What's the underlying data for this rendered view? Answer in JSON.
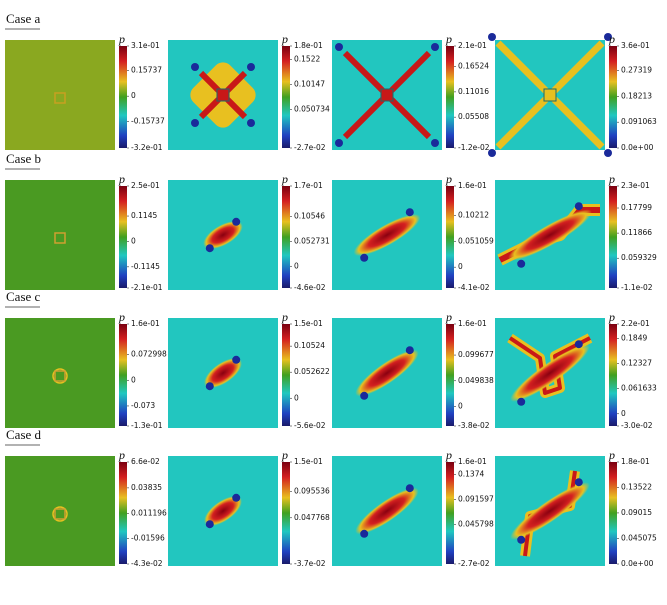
{
  "colorbar_symbol": "p",
  "cases": [
    {
      "label": "Case a",
      "panels": [
        {
          "ticks": [
            "3.1e-01",
            "0.15737",
            "0",
            "-0.15737",
            "-3.2e-01"
          ]
        },
        {
          "ticks": [
            "1.8e-01",
            "0.1522",
            "0.10147",
            "0.050734",
            "-2.7e-02"
          ]
        },
        {
          "ticks": [
            "2.1e-01",
            "0.16524",
            "0.11016",
            "0.05508",
            "-1.2e-02"
          ]
        },
        {
          "ticks": [
            "3.6e-01",
            "0.27319",
            "0.18213",
            "0.091063",
            "0.0e+00"
          ]
        }
      ]
    },
    {
      "label": "Case b",
      "panels": [
        {
          "ticks": [
            "2.5e-01",
            "0.1145",
            "0",
            "-0.1145",
            "-2.1e-01"
          ]
        },
        {
          "ticks": [
            "1.7e-01",
            "0.10546",
            "0.052731",
            "0",
            "-4.6e-02"
          ]
        },
        {
          "ticks": [
            "1.6e-01",
            "0.10212",
            "0.051059",
            "0",
            "-4.1e-02"
          ]
        },
        {
          "ticks": [
            "2.3e-01",
            "0.17799",
            "0.11866",
            "0.059329",
            "-1.1e-02"
          ]
        }
      ]
    },
    {
      "label": "Case c",
      "panels": [
        {
          "ticks": [
            "1.6e-01",
            "0.072998",
            "0",
            "-0.073",
            "-1.3e-01"
          ]
        },
        {
          "ticks": [
            "1.5e-01",
            "0.10524",
            "0.052622",
            "0",
            "-5.6e-02"
          ]
        },
        {
          "ticks": [
            "1.6e-01",
            "0.099677",
            "0.049838",
            "0",
            "-3.8e-02"
          ]
        },
        {
          "ticks": [
            "2.2e-01",
            "0.1849",
            "0.12327",
            "0.061633",
            "0",
            "-3.0e-02"
          ]
        }
      ]
    },
    {
      "label": "Case d",
      "panels": [
        {
          "ticks": [
            "6.6e-02",
            "0.03835",
            "0.011196",
            "-0.01596",
            "-4.3e-02"
          ]
        },
        {
          "ticks": [
            "1.5e-01",
            "0.095536",
            "0.047768",
            "-3.7e-02"
          ]
        },
        {
          "ticks": [
            "1.6e-01",
            "0.1374",
            "0.091597",
            "0.045798",
            "-2.7e-02"
          ]
        },
        {
          "ticks": [
            "1.8e-01",
            "0.13522",
            "0.09015",
            "0.045075",
            "0.0e+00"
          ]
        }
      ]
    }
  ]
}
